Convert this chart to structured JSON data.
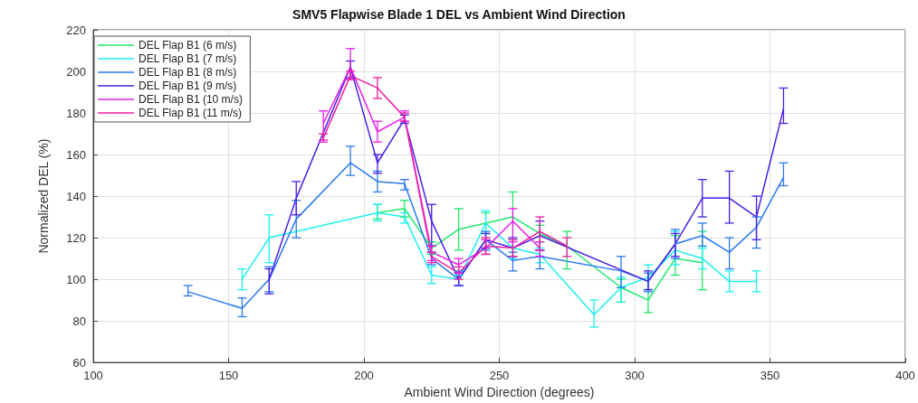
{
  "chart_data": {
    "type": "line",
    "title": "SMV5 Flapwise Blade 1 DEL vs Ambient Wind Direction",
    "xlabel": "Ambient Wind Direction (degrees)",
    "ylabel": "Normalized DEL (%)",
    "xlim": [
      100,
      400
    ],
    "xticks": [
      100,
      150,
      200,
      250,
      300,
      350,
      400
    ],
    "ylim": [
      60,
      220
    ],
    "yticks": [
      60,
      80,
      100,
      120,
      140,
      160,
      180,
      200,
      220
    ],
    "grid": true,
    "legend": "top left",
    "marker": "none",
    "line_style": "solid",
    "series": [
      {
        "name": "DEL Flap B1 (6 m/s)",
        "color": "#1ee86a",
        "x": [
          205,
          215,
          225,
          235,
          245,
          255,
          265,
          275,
          295,
          305,
          315,
          325
        ],
        "values": [
          132,
          134,
          115,
          124,
          127,
          130,
          122,
          116,
          96,
          90,
          110,
          108
        ],
        "errors": [
          [
            129,
            136
          ],
          [
            130,
            138
          ],
          [
            112,
            118
          ],
          [
            114,
            134
          ],
          [
            122,
            132
          ],
          [
            119,
            142
          ],
          [
            118,
            126
          ],
          [
            105,
            123
          ],
          [
            89,
            100
          ],
          [
            84,
            95
          ],
          [
            102,
            121
          ],
          [
            95,
            123
          ]
        ]
      },
      {
        "name": "DEL Flap B1 (7 m/s)",
        "color": "#1ef0f0",
        "x": [
          155,
          165,
          205,
          215,
          225,
          235,
          245,
          255,
          265,
          285,
          295,
          305,
          315,
          325,
          335,
          345
        ],
        "values": [
          100,
          120,
          132,
          130,
          102,
          100,
          127,
          115,
          112,
          83,
          96,
          101,
          114,
          110,
          99,
          99
        ],
        "errors": [
          [
            95,
            105
          ],
          [
            108,
            131
          ],
          [
            128,
            136
          ],
          [
            127,
            132
          ],
          [
            98,
            106
          ],
          [
            97,
            102
          ],
          [
            119,
            133
          ],
          [
            110,
            119
          ],
          [
            108,
            115
          ],
          [
            77,
            90
          ],
          [
            89,
            101
          ],
          [
            95,
            107
          ],
          [
            107,
            123
          ],
          [
            105,
            115
          ],
          [
            94,
            104
          ],
          [
            94,
            104
          ]
        ]
      },
      {
        "name": "DEL Flap B1 (8 m/s)",
        "color": "#2a78f0",
        "x": [
          135,
          155,
          165,
          175,
          195,
          205,
          215,
          225,
          235,
          245,
          255,
          265,
          295,
          305,
          315,
          325,
          335,
          345,
          355
        ],
        "values": [
          94,
          86,
          100,
          129,
          156,
          147,
          146,
          110,
          100,
          119,
          109,
          111,
          104,
          99,
          117,
          121,
          113,
          125,
          149
        ],
        "errors": [
          [
            92,
            97
          ],
          [
            82,
            91
          ],
          [
            94,
            106
          ],
          [
            120,
            138
          ],
          [
            150,
            164
          ],
          [
            142,
            152
          ],
          [
            143,
            148
          ],
          [
            107,
            113
          ],
          [
            97,
            104
          ],
          [
            114,
            123
          ],
          [
            104,
            113
          ],
          [
            105,
            114
          ],
          [
            96,
            111
          ],
          [
            94,
            103
          ],
          [
            110,
            124
          ],
          [
            116,
            127
          ],
          [
            105,
            120
          ],
          [
            115,
            130
          ],
          [
            145,
            156
          ]
        ]
      },
      {
        "name": "DEL Flap B1 (9 m/s)",
        "color": "#4b1fe6",
        "x": [
          165,
          175,
          195,
          205,
          215,
          225,
          235,
          245,
          255,
          265,
          305,
          315,
          325,
          335,
          345,
          355
        ],
        "values": [
          100,
          139,
          202,
          156,
          177,
          128,
          100,
          119,
          115,
          121,
          99,
          117,
          139,
          139,
          130,
          182
        ],
        "errors": [
          [
            93,
            105
          ],
          [
            131,
            147
          ],
          [
            197,
            205
          ],
          [
            151,
            160
          ],
          [
            175,
            179
          ],
          [
            116,
            136
          ],
          [
            97,
            103
          ],
          [
            115,
            122
          ],
          [
            111,
            120
          ],
          [
            114,
            128
          ],
          [
            95,
            104
          ],
          [
            111,
            122
          ],
          [
            130,
            148
          ],
          [
            127,
            152
          ],
          [
            119,
            140
          ],
          [
            175,
            192
          ]
        ]
      },
      {
        "name": "DEL Flap B1 (10 m/s)",
        "color": "#e61ee6",
        "x": [
          185,
          195,
          205,
          215,
          225,
          235,
          245,
          255,
          265
        ],
        "values": [
          175,
          202,
          171,
          178,
          113,
          107,
          115,
          128,
          115
        ],
        "errors": [
          [
            166,
            181
          ],
          [
            196,
            211
          ],
          [
            166,
            176
          ],
          [
            176,
            181
          ],
          [
            109,
            116
          ],
          [
            103,
            110
          ],
          [
            112,
            119
          ],
          [
            118,
            134
          ],
          [
            111,
            118
          ]
        ]
      },
      {
        "name": "DEL Flap B1 (11 m/s)",
        "color": "#f01ea0",
        "x": [
          185,
          195,
          205,
          215,
          225,
          235,
          245,
          255,
          265,
          275
        ],
        "values": [
          168,
          198,
          192,
          178,
          111,
          103,
          116,
          115,
          123,
          116
        ],
        "errors": [
          [
            167,
            170
          ],
          [
            196,
            200
          ],
          [
            187,
            197
          ],
          [
            176,
            180
          ],
          [
            108,
            113
          ],
          [
            100,
            106
          ],
          [
            112,
            120
          ],
          [
            111,
            119
          ],
          [
            114,
            130
          ],
          [
            111,
            120
          ]
        ]
      }
    ]
  }
}
